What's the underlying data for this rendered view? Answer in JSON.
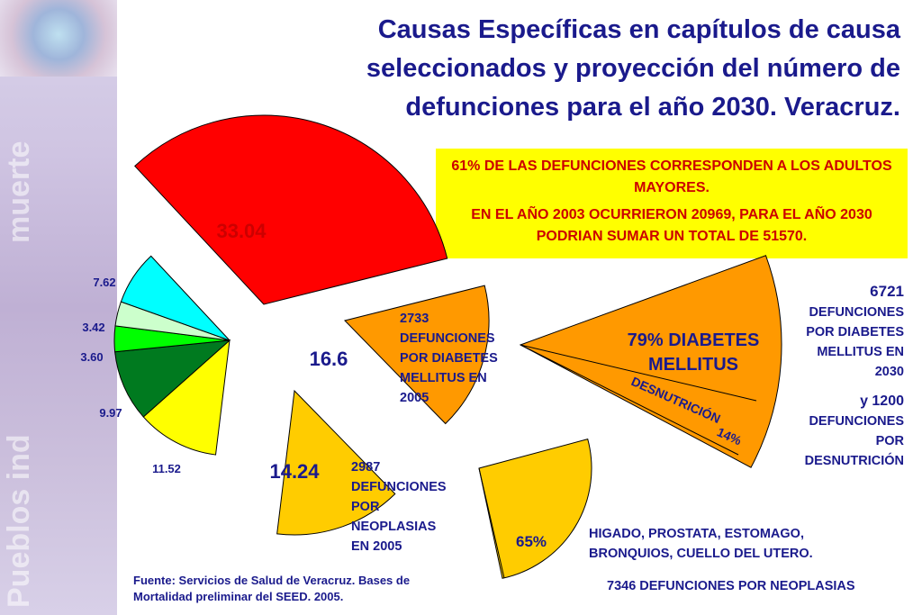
{
  "title": "Causas Específicas en capítulos de causa seleccionados y proyección del número de defunciones para el año 2030. Veracruz.",
  "strip_texts": [
    "Pueblos ind",
    "muerte"
  ],
  "info_box": {
    "line1": "61% DE LAS DEFUNCIONES CORRESPONDEN A LOS ADULTOS MAYORES.",
    "line2": "EN EL AÑO 2003 OCURRIERON 20969, PARA EL AÑO 2030 PODRIAN SUMAR UN TOTAL DE 51570."
  },
  "colors": {
    "red": "#ff0000",
    "orange": "#ff9900",
    "cyan": "#00ffff",
    "light_green": "#ccffcc",
    "green": "#00ff00",
    "dark_green": "#007a1f",
    "yellow": "#ffff00",
    "gold": "#ffcc00",
    "text_navy": "#1a1a8c",
    "text_red": "#cc0000"
  },
  "chart_data": [
    {
      "type": "pie",
      "title": "",
      "slices": [
        {
          "value": 33.04,
          "label": "33.04",
          "color": "#ff0000",
          "exploded": true
        },
        {
          "value": 16.6,
          "label": "16.6",
          "color": "#ff9900",
          "exploded": true
        },
        {
          "value": 14.24,
          "label": "14.24",
          "color": "#ffcc00",
          "exploded": true
        },
        {
          "value": 11.52,
          "label": "11.52",
          "color": "#ffff00"
        },
        {
          "value": 9.97,
          "label": "9.97",
          "color": "#007a1f"
        },
        {
          "value": 3.6,
          "label": "3.60",
          "color": "#00ff00"
        },
        {
          "value": 3.42,
          "label": "3.42",
          "color": "#ccffcc"
        },
        {
          "value": 7.62,
          "label": "7.62",
          "color": "#00ffff"
        }
      ],
      "annotations": [
        "2733 DEFUNCIONES POR DIABETES MELLITUS EN 2005",
        "2987 DEFUNCIONES POR NEOPLASIAS EN 2005"
      ]
    },
    {
      "type": "pie",
      "title": "",
      "slices": [
        {
          "value": 79,
          "label": "79% DIABETES MELLITUS",
          "color": "#ff9900"
        },
        {
          "value": 14,
          "label": "DESNUTRICIÓN 14%",
          "color": "#ff9900"
        }
      ],
      "annotations": [
        "6721 DEFUNCIONES POR DIABETES MELLITUS EN 2030",
        "y 1200 DEFUNCIONES POR DESNUTRICIÓN"
      ]
    },
    {
      "type": "pie",
      "title": "",
      "slices": [
        {
          "value": 65,
          "label": "65%",
          "color": "#ffcc00"
        }
      ],
      "annotations": [
        "HIGADO, PROSTATA, ESTOMAGO, BRONQUIOS, CUELLO DEL UTERO.",
        "7346 DEFUNCIONES POR NEOPLASIAS"
      ]
    }
  ],
  "text": {
    "dm2005": [
      "2733",
      "DEFUNCIONES",
      "POR DIABETES",
      "MELLITUS EN",
      "2005"
    ],
    "neo2005": [
      "2987",
      "DEFUNCIONES",
      "POR",
      "NEOPLASIAS",
      "EN 2005"
    ],
    "dm2030": [
      "6721",
      "DEFUNCIONES",
      "POR DIABETES",
      "MELLITUS EN",
      "2030"
    ],
    "desn2030": [
      "y 1200",
      "DEFUNCIONES",
      "POR",
      "DESNUTRICIÓN"
    ],
    "dm_pct": [
      "79% DIABETES",
      "MELLITUS"
    ],
    "desn_pct": [
      "DESNUTRICIÓN",
      "14%"
    ],
    "neo_pct": "65%",
    "organs": [
      "HIGADO, PROSTATA, ESTOMAGO,",
      "BRONQUIOS, CUELLO DEL UTERO."
    ],
    "neo2030": "7346 DEFUNCIONES POR NEOPLASIAS"
  },
  "source": {
    "line1": "Fuente: Servicios de Salud de Veracruz. Bases de",
    "line2": "Mortalidad preliminar del SEED. 2005."
  }
}
